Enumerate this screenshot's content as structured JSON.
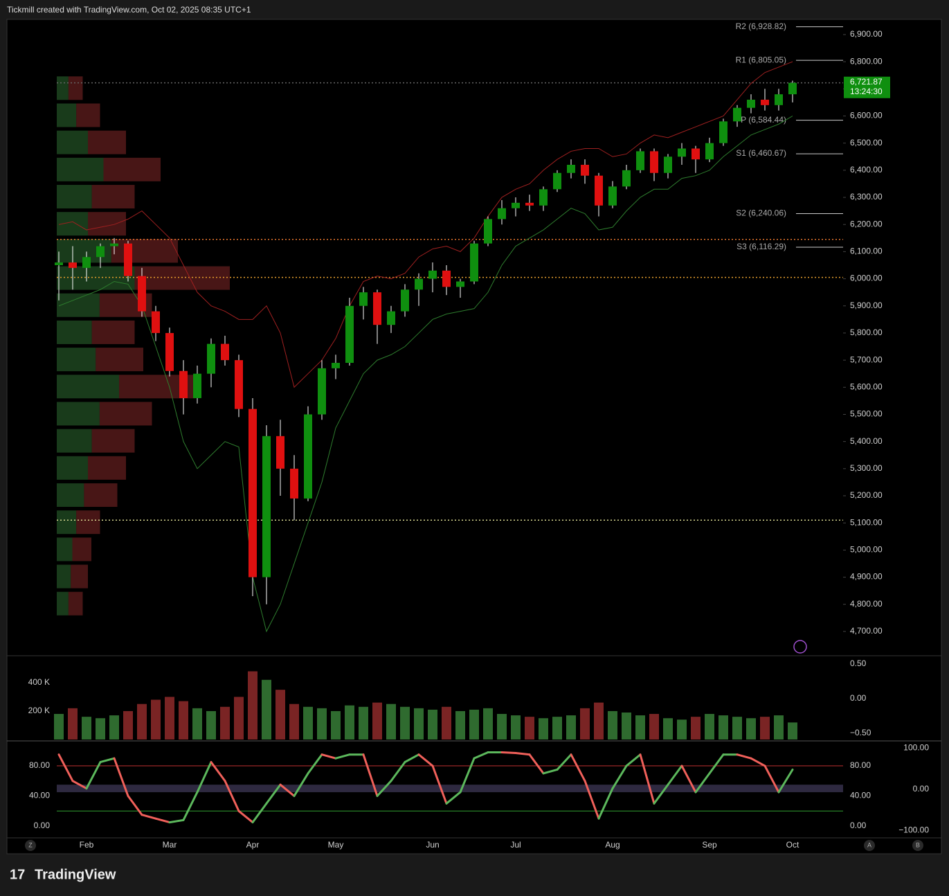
{
  "header": {
    "title": "Tickmill created with TradingView.com, Oct 02, 2025 08:35 UTC+1"
  },
  "footer": {
    "brand": "TradingView"
  },
  "chart_data": {
    "type": "candlestick",
    "categories": [
      null,
      null,
      "Feb",
      null,
      null,
      null,
      null,
      null,
      "Mar",
      null,
      null,
      null,
      null,
      null,
      "Apr",
      null,
      null,
      null,
      null,
      null,
      "May",
      null,
      null,
      null,
      null,
      null,
      null,
      "Jun",
      null,
      null,
      null,
      null,
      null,
      "Jul",
      null,
      null,
      null,
      null,
      null,
      null,
      "Aug",
      null,
      null,
      null,
      null,
      null,
      null,
      "Sep",
      null,
      null,
      null,
      null,
      null,
      "Oct"
    ],
    "open": [
      6050,
      6060,
      6040,
      6080,
      6120,
      6130,
      6010,
      5880,
      5800,
      5660,
      5560,
      5650,
      5760,
      5700,
      5520,
      4900,
      5420,
      5300,
      5190,
      5500,
      5670,
      5690,
      5900,
      5950,
      5830,
      5880,
      5960,
      6000,
      6030,
      5970,
      5990,
      6130,
      6220,
      6260,
      6280,
      6270,
      6330,
      6390,
      6420,
      6380,
      6270,
      6340,
      6400,
      6470,
      6390,
      6450,
      6480,
      6440,
      6500,
      6580,
      6630,
      6660,
      6640,
      6680
    ],
    "high": [
      6100,
      6120,
      6100,
      6130,
      6150,
      6140,
      6040,
      5900,
      5820,
      5700,
      5680,
      5780,
      5790,
      5720,
      5560,
      5460,
      5480,
      5350,
      5530,
      5700,
      5720,
      5930,
      5970,
      5960,
      5900,
      5980,
      6020,
      6060,
      6050,
      6000,
      6140,
      6230,
      6290,
      6300,
      6310,
      6340,
      6400,
      6440,
      6440,
      6390,
      6360,
      6420,
      6480,
      6480,
      6460,
      6500,
      6490,
      6520,
      6590,
      6640,
      6680,
      6700,
      6700,
      6730
    ],
    "low": [
      5920,
      5960,
      5990,
      6040,
      6090,
      5990,
      5860,
      5770,
      5640,
      5500,
      5540,
      5600,
      5680,
      5490,
      4830,
      4800,
      5200,
      5110,
      5180,
      5480,
      5630,
      5680,
      5850,
      5760,
      5800,
      5860,
      5900,
      5950,
      5940,
      5930,
      5980,
      6120,
      6200,
      6230,
      6250,
      6250,
      6320,
      6370,
      6350,
      6230,
      6260,
      6330,
      6390,
      6360,
      6370,
      6420,
      6390,
      6430,
      6490,
      6560,
      6610,
      6620,
      6620,
      6650
    ],
    "close": [
      6060,
      6040,
      6080,
      6120,
      6130,
      6010,
      5880,
      5800,
      5660,
      5560,
      5650,
      5760,
      5700,
      5520,
      4900,
      5420,
      5300,
      5190,
      5500,
      5670,
      5690,
      5900,
      5950,
      5830,
      5880,
      5960,
      6000,
      6030,
      5970,
      5990,
      6130,
      6220,
      6260,
      6280,
      6270,
      6330,
      6390,
      6420,
      6380,
      6270,
      6340,
      6400,
      6470,
      6390,
      6450,
      6480,
      6440,
      6500,
      6580,
      6630,
      6660,
      6640,
      6680,
      6722
    ],
    "up_color": "#0f8f0f",
    "down_color": "#e01010",
    "upper_band": {
      "color": "#a02020",
      "values": [
        6200,
        6210,
        6180,
        6190,
        6200,
        6220,
        6250,
        6200,
        6150,
        6050,
        5950,
        5900,
        5880,
        5850,
        5850,
        5900,
        5800,
        5600,
        5650,
        5700,
        5780,
        5900,
        5990,
        6010,
        6000,
        6020,
        6080,
        6110,
        6120,
        6100,
        6150,
        6230,
        6300,
        6330,
        6350,
        6400,
        6440,
        6470,
        6480,
        6480,
        6450,
        6460,
        6500,
        6530,
        6520,
        6540,
        6560,
        6580,
        6600,
        6660,
        6720,
        6760,
        6780,
        6800
      ]
    },
    "lower_band": {
      "color": "#2e7d2e",
      "values": [
        5900,
        5920,
        5940,
        5960,
        5990,
        5980,
        5900,
        5750,
        5600,
        5400,
        5300,
        5350,
        5400,
        5380,
        4900,
        4700,
        4800,
        4950,
        5100,
        5250,
        5450,
        5550,
        5650,
        5700,
        5720,
        5750,
        5800,
        5850,
        5870,
        5880,
        5890,
        5950,
        6050,
        6120,
        6150,
        6180,
        6220,
        6260,
        6240,
        6180,
        6190,
        6250,
        6300,
        6330,
        6330,
        6370,
        6380,
        6400,
        6450,
        6490,
        6530,
        6550,
        6570,
        6600
      ]
    },
    "ylim": [
      4613,
      6956
    ],
    "yticks": [
      {
        "value": 6900,
        "label": "6,900.00"
      },
      {
        "value": 6800,
        "label": "6,800.00"
      },
      {
        "value": 6700,
        "label": "6,700.00"
      },
      {
        "value": 6600,
        "label": "6,600.00"
      },
      {
        "value": 6500,
        "label": "6,500.00"
      },
      {
        "value": 6400,
        "label": "6,400.00"
      },
      {
        "value": 6300,
        "label": "6,300.00"
      },
      {
        "value": 6200,
        "label": "6,200.00"
      },
      {
        "value": 6100,
        "label": "6,100.00"
      },
      {
        "value": 6000,
        "label": "6,000.00"
      },
      {
        "value": 5900,
        "label": "5,900.00"
      },
      {
        "value": 5800,
        "label": "5,800.00"
      },
      {
        "value": 5700,
        "label": "5,700.00"
      },
      {
        "value": 5600,
        "label": "5,600.00"
      },
      {
        "value": 5500,
        "label": "5,500.00"
      },
      {
        "value": 5400,
        "label": "5,400.00"
      },
      {
        "value": 5300,
        "label": "5,300.00"
      },
      {
        "value": 5200,
        "label": "5,200.00"
      },
      {
        "value": 5100,
        "label": "5,100.00"
      },
      {
        "value": 5000,
        "label": "5,000.00"
      },
      {
        "value": 4900,
        "label": "4,900.00"
      },
      {
        "value": 4800,
        "label": "4,800.00"
      },
      {
        "value": 4700,
        "label": "4,700.00"
      }
    ],
    "pivots": [
      {
        "value": 6928.82,
        "label": "R2 (6,928.82)"
      },
      {
        "value": 6805.05,
        "label": "R1 (6,805.05)"
      },
      {
        "value": 6584.44,
        "label": "P (6,584.44)"
      },
      {
        "value": 6460.67,
        "label": "S1 (6,460.67)"
      },
      {
        "value": 6240.06,
        "label": "S2 (6,240.06)"
      },
      {
        "value": 6116.29,
        "label": "S3 (6,116.29)"
      }
    ],
    "levels": [
      {
        "value": 6145,
        "color": "#e8772e"
      },
      {
        "value": 6005,
        "color": "#e8a02e"
      },
      {
        "value": 5110,
        "color": "#d8d890"
      },
      {
        "value": 6722,
        "color": "#666666"
      }
    ],
    "last_price": {
      "value": 6721.87,
      "label": "6,721.87",
      "countdown": "13:24:30",
      "color": "#0f8f0f"
    },
    "volume_profile": {
      "prices": [
        4800,
        4900,
        5000,
        5100,
        5200,
        5300,
        5400,
        5500,
        5600,
        5700,
        5800,
        5900,
        6000,
        6100,
        6200,
        6300,
        6400,
        6500,
        6600,
        6700
      ],
      "values": [
        15,
        18,
        20,
        25,
        35,
        40,
        45,
        55,
        80,
        50,
        45,
        55,
        100,
        70,
        40,
        45,
        60,
        40,
        25,
        15
      ]
    },
    "volume": {
      "values": [
        180,
        220,
        160,
        150,
        170,
        200,
        250,
        280,
        300,
        270,
        220,
        200,
        230,
        300,
        480,
        420,
        350,
        250,
        230,
        220,
        200,
        240,
        230,
        260,
        250,
        230,
        220,
        210,
        230,
        200,
        210,
        220,
        180,
        170,
        160,
        150,
        160,
        170,
        220,
        260,
        200,
        190,
        170,
        180,
        150,
        140,
        160,
        180,
        170,
        160,
        150,
        160,
        170,
        120
      ],
      "ylim": [
        0,
        575
      ],
      "yticks": [
        {
          "value": 200,
          "label": "200 K"
        },
        {
          "value": 400,
          "label": "400 K"
        }
      ],
      "y2lim": [
        -0.59,
        0.59
      ],
      "y2ticks": [
        {
          "value": 0.5,
          "label": "0.50"
        },
        {
          "value": 0,
          "label": "0.00"
        },
        {
          "value": -0.5,
          "label": "−0.50"
        }
      ]
    },
    "oscillator": {
      "values": [
        95,
        60,
        50,
        85,
        90,
        40,
        15,
        10,
        5,
        8,
        45,
        85,
        60,
        20,
        5,
        30,
        55,
        40,
        70,
        95,
        90,
        95,
        95,
        40,
        60,
        85,
        95,
        80,
        30,
        45,
        90,
        98,
        98,
        97,
        95,
        70,
        75,
        95,
        60,
        10,
        50,
        80,
        95,
        30,
        55,
        80,
        45,
        70,
        95,
        95,
        90,
        80,
        45,
        75
      ],
      "up_color": "#5cb85c",
      "down_color": "#f0605a",
      "ylim": [
        -15.6,
        111.3
      ],
      "yticks": [
        {
          "value": 80,
          "label": "80.00"
        },
        {
          "value": 40,
          "label": "40.00"
        },
        {
          "value": 0,
          "label": "0.00"
        }
      ],
      "y2lim": [
        -118,
        114
      ],
      "y2ticks": [
        {
          "value": 100,
          "label": "100.00"
        },
        {
          "value": 0,
          "label": "0.00"
        },
        {
          "value": -100,
          "label": "−100.00"
        }
      ],
      "overbought": 80,
      "oversold": 20
    },
    "axis_buttons": [
      "Z",
      "A",
      "B"
    ]
  }
}
